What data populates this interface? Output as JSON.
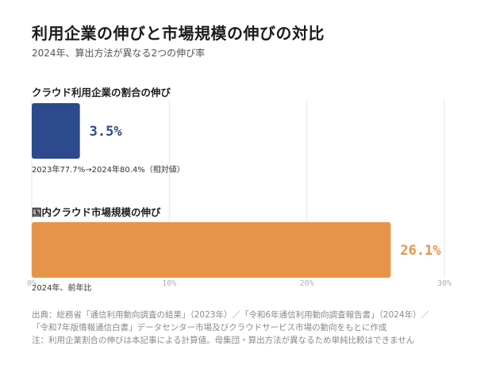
{
  "header": {
    "title": "利用企業の伸びと市場規模の伸びの対比",
    "subtitle": "2024年、算出方法が異なる2つの伸び率"
  },
  "chart_data": {
    "type": "bar",
    "orientation": "horizontal",
    "xlim": [
      0,
      30
    ],
    "ticks": [
      {
        "value": 0,
        "label": "0%"
      },
      {
        "value": 10,
        "label": "10%"
      },
      {
        "value": 20,
        "label": "20%"
      },
      {
        "value": 30,
        "label": "30%"
      }
    ],
    "grid": true,
    "series": [
      {
        "category": "クラウド利用企業の割合の伸び",
        "value": 3.5,
        "value_label": "3.5%",
        "note": "2023年77.7%→2024年80.4%（相対値）",
        "color": "#2c4a8c"
      },
      {
        "category": "国内クラウド市場規模の伸び",
        "value": 26.1,
        "value_label": "26.1%",
        "note": "2024年、前年比",
        "color": "#e6944a"
      }
    ]
  },
  "footer": {
    "source_line1": "出典：総務省「通信利用動向調査の結果」（2023年）／「令和6年通信利用動向調査報告書」（2024年）／",
    "source_line2": "「令和7年版情報通信白書」データセンター市場及びクラウドサービス市場の動向をもとに作成",
    "note_line": "注：利用企業割合の伸びは本記事による計算値。母集団・算出方法が異なるため単純比較はできません"
  }
}
